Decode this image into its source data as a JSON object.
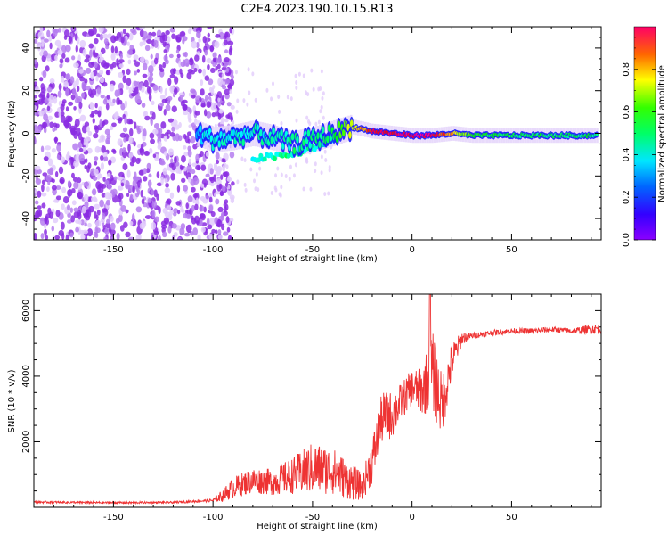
{
  "title": "C2E4.2023.190.10.15.R13",
  "chart_data": [
    {
      "type": "heatmap",
      "title": "C2E4.2023.190.10.15.R13",
      "xlabel": "Height of straight line (km)",
      "ylabel": "Frequency (Hz)",
      "xlim": [
        -190,
        95
      ],
      "ylim": [
        -50,
        50
      ],
      "xticks": [
        -150,
        -100,
        -50,
        0,
        50
      ],
      "xtick_labels": [
        "-150",
        "-100",
        "-50",
        "0",
        "50"
      ],
      "yticks": [
        -40,
        -20,
        0,
        20,
        40
      ],
      "ytick_labels": [
        "-40",
        "-20",
        "0",
        "20",
        "40"
      ],
      "colorbar": {
        "label": "Normalized spectral amplitude",
        "range": [
          0,
          1
        ],
        "ticks": [
          0.0,
          0.2,
          0.4,
          0.6,
          0.8
        ],
        "tick_labels": [
          "0.0",
          "0.2",
          "0.4",
          "0.6",
          "0.8"
        ],
        "colormap": "gist_rainbow"
      },
      "description_points": {
        "noise_region_x": [
          -190,
          -100
        ],
        "noise_amplitude": 0.1,
        "signal_track": {
          "x": [
            -108,
            -100,
            -90,
            -80,
            -70,
            -60,
            -50,
            -40,
            -30,
            -20,
            -10,
            0,
            10,
            20,
            30,
            50,
            70,
            93
          ],
          "freq_hz": [
            0,
            -3,
            -2,
            0,
            -2,
            -5,
            -3,
            0,
            3,
            1,
            0,
            -1,
            -1,
            0,
            -1,
            -1,
            -1,
            -1
          ],
          "amplitude": [
            0.25,
            0.3,
            0.3,
            0.3,
            0.3,
            0.35,
            0.35,
            0.4,
            0.6,
            0.8,
            0.85,
            0.9,
            0.85,
            0.7,
            0.45,
            0.4,
            0.4,
            0.4
          ]
        },
        "secondary_track": {
          "x": [
            -80,
            -70,
            -60,
            -50,
            -40
          ],
          "freq_hz": [
            -12,
            -11,
            -10,
            -7,
            -3
          ],
          "amplitude": [
            0.3,
            0.35,
            0.4,
            0.35,
            0.3
          ]
        }
      }
    },
    {
      "type": "line",
      "xlabel": "Height of straight line (km)",
      "ylabel": "SNR (10 * v/v)",
      "xlim": [
        -190,
        95
      ],
      "ylim": [
        0,
        6500
      ],
      "xticks": [
        -150,
        -100,
        -50,
        0,
        50
      ],
      "xtick_labels": [
        "-150",
        "-100",
        "-50",
        "0",
        "50"
      ],
      "yticks": [
        2000,
        4000,
        6000
      ],
      "ytick_labels": [
        "2000",
        "4000",
        "6000"
      ],
      "color": "#ee3333",
      "series": [
        {
          "name": "SNR",
          "x": [
            -190,
            -150,
            -120,
            -100,
            -95,
            -90,
            -80,
            -70,
            -60,
            -50,
            -40,
            -30,
            -25,
            -20,
            -15,
            -10,
            -5,
            0,
            5,
            10,
            15,
            20,
            25,
            30,
            40,
            50,
            60,
            70,
            80,
            93
          ],
          "baseline": [
            150,
            130,
            140,
            200,
            300,
            500,
            700,
            650,
            800,
            950,
            900,
            600,
            500,
            1200,
            2500,
            2600,
            3100,
            3500,
            3300,
            3800,
            2800,
            4300,
            5100,
            5200,
            5300,
            5350,
            5350,
            5400,
            5350,
            5400
          ],
          "spread": [
            40,
            40,
            40,
            60,
            250,
            400,
            500,
            500,
            700,
            1000,
            900,
            700,
            500,
            900,
            1000,
            900,
            700,
            700,
            900,
            1600,
            1200,
            700,
            250,
            120,
            110,
            110,
            110,
            110,
            110,
            200
          ]
        }
      ],
      "peak": {
        "x": 9,
        "y": 6500
      }
    }
  ]
}
